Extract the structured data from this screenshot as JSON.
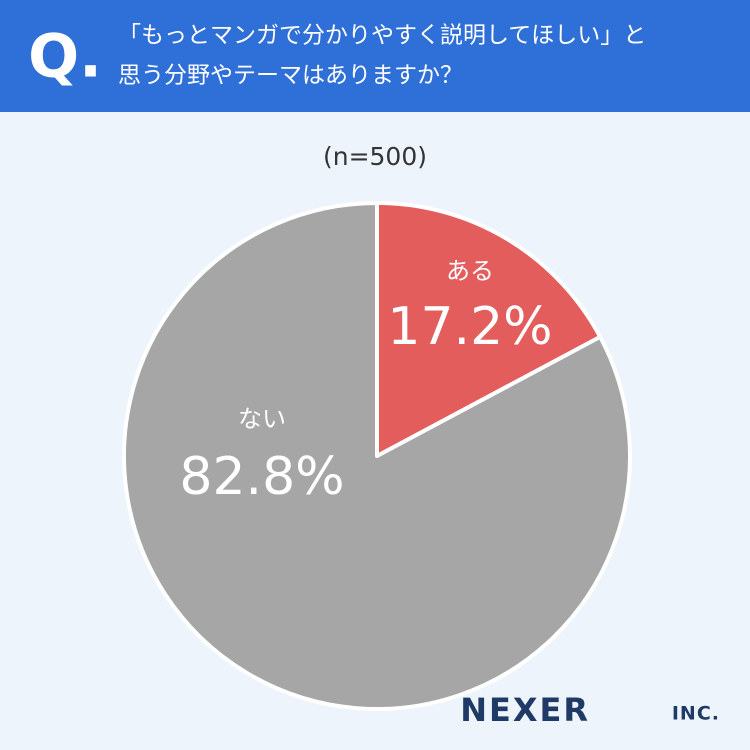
{
  "chart_data": {
    "type": "pie",
    "q_mark": "Q.",
    "title": [
      "「もっとマンガで分かりやすく説明してほしい」と",
      "思う分野やテーマはありますか？"
    ],
    "subtitle": "(n=500)",
    "categories": [
      "ある",
      "ない"
    ],
    "values": [
      17.2,
      82.8
    ],
    "value_labels": [
      "17.2%",
      "82.8%"
    ],
    "colors": [
      "#e35d5d",
      "#a6a6a6"
    ]
  },
  "brand": {
    "name": "NEXER",
    "suffix": "INC."
  }
}
